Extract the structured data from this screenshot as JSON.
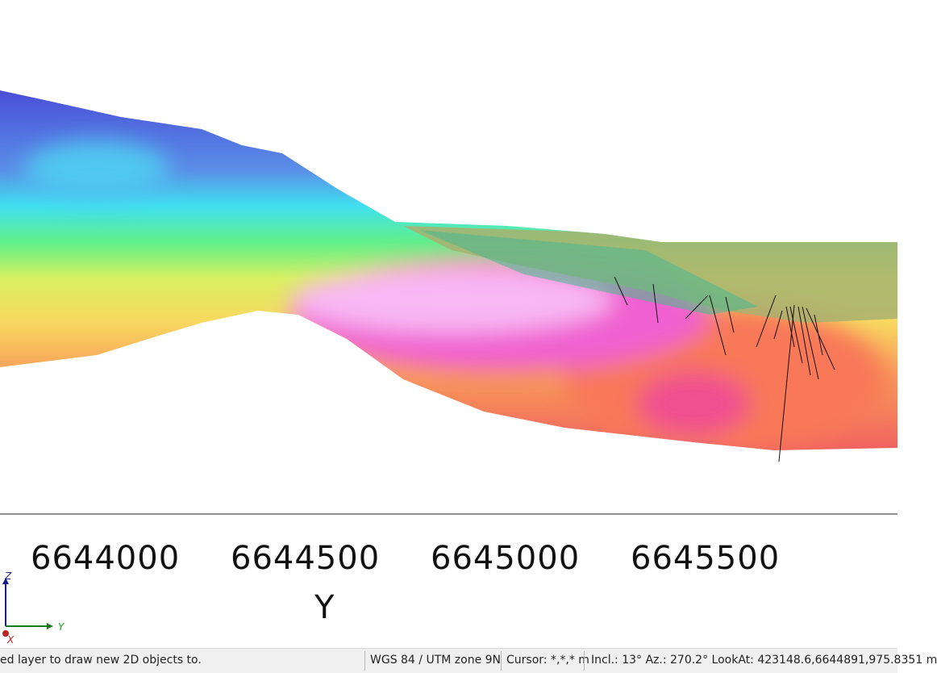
{
  "viewport": {
    "axis": {
      "title": "Y",
      "ticks": [
        "6644000",
        "6644500",
        "6645000",
        "6645500"
      ]
    },
    "triad": {
      "z": "Z",
      "y": "Y",
      "x": "X"
    }
  },
  "status_bar": {
    "message": "ed layer to draw new 2D objects to.",
    "crs": "WGS 84 / UTM zone 9N",
    "cursor": "Cursor: *,*,* m",
    "view": "Incl.: 13° Az.: 270.2° LookAt: 423148.6,6644891,975.8351 m"
  }
}
